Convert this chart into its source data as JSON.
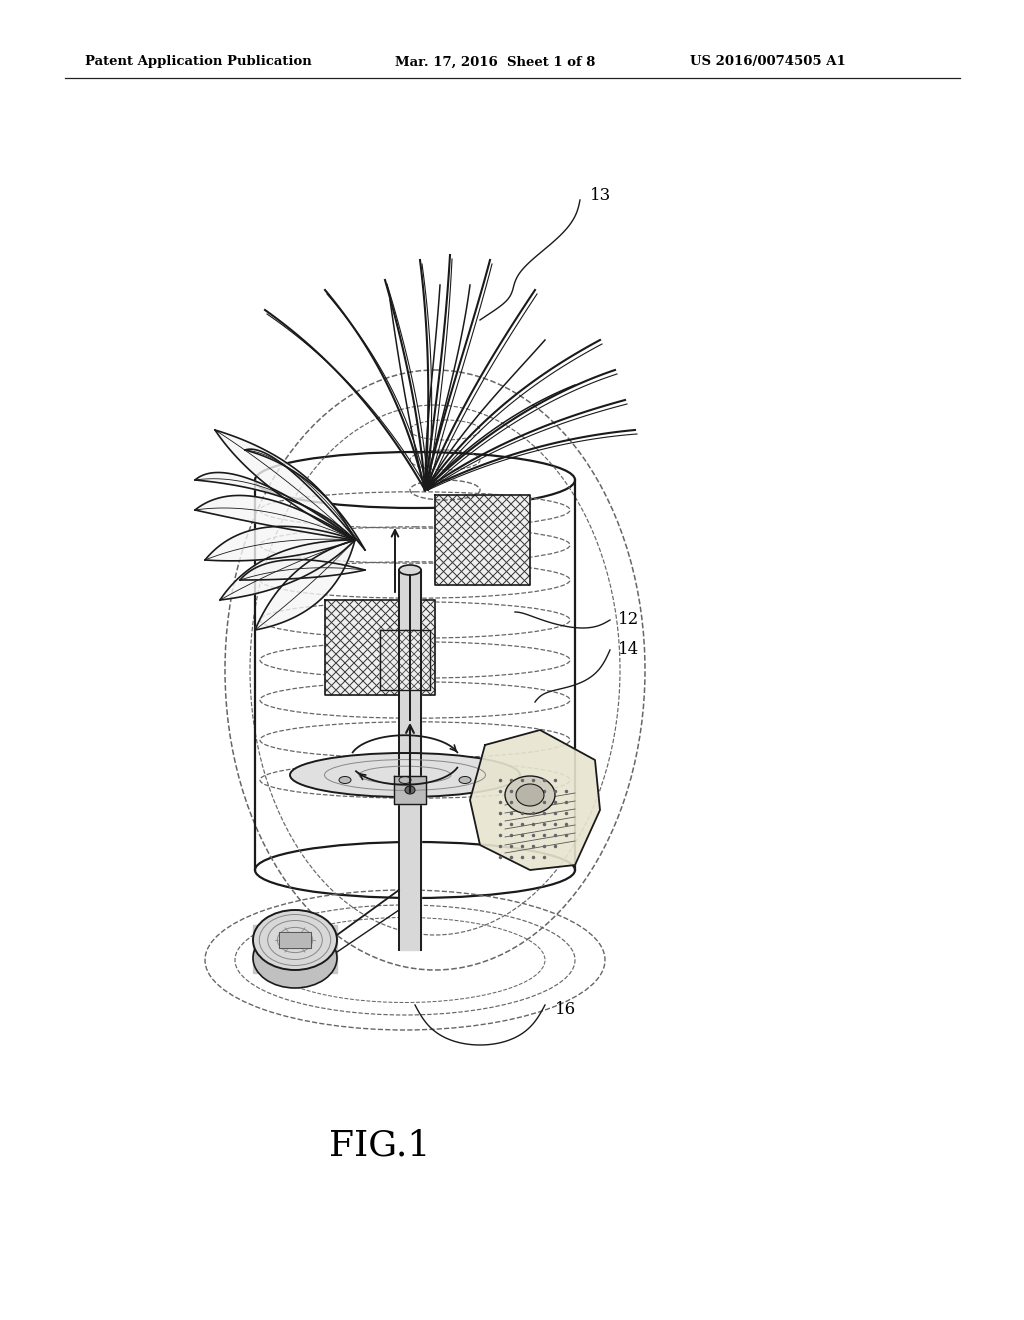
{
  "background_color": "#ffffff",
  "header_left": "Patent Application Publication",
  "header_mid": "Mar. 17, 2016  Sheet 1 of 8",
  "header_right": "US 2016/0074505 A1",
  "figure_label": "FIG.1",
  "line_color": "#1a1a1a",
  "dashed_color": "#666666",
  "text_color": "#000000",
  "fig_width": 10.24,
  "fig_height": 13.2,
  "dpi": 100
}
